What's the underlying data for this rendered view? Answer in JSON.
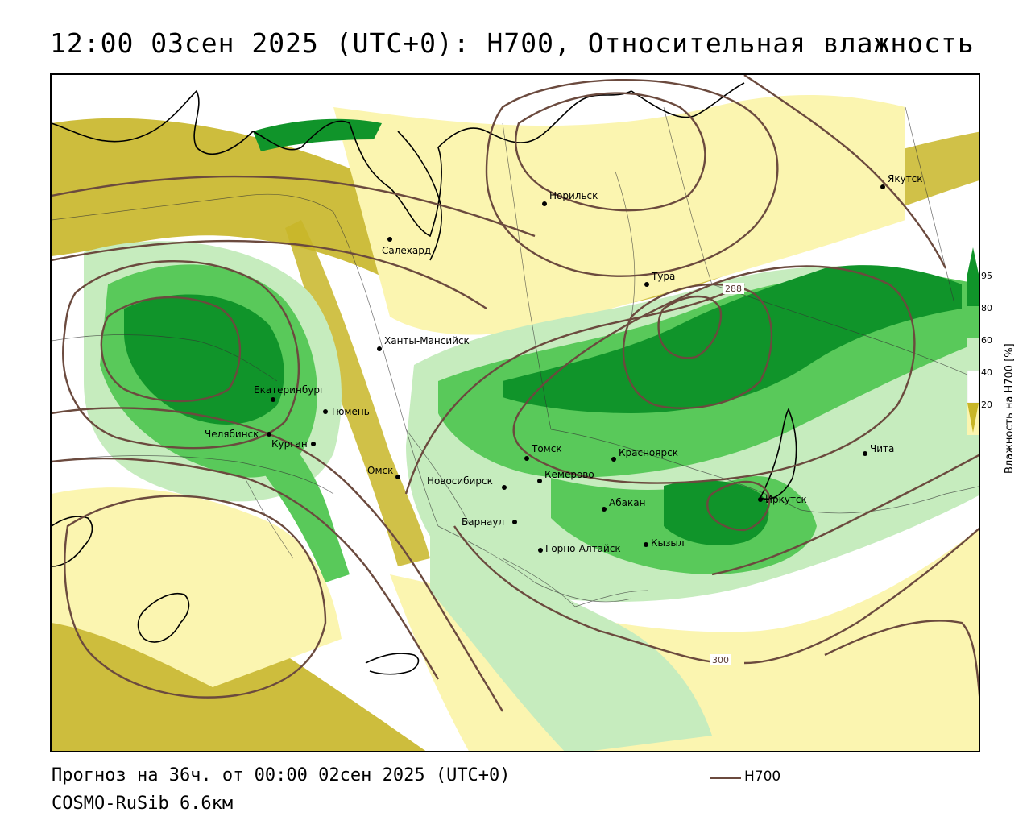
{
  "header": {
    "title": "12:00 03сен 2025 (UTC+0): H700, Относительная влажность"
  },
  "footer": {
    "forecast": "Прогноз на 36ч. от 00:00 02сен 2025 (UTC+0)",
    "model": "COSMO-RuSib 6.6км",
    "key_label": "H700"
  },
  "legend": {
    "title": "Влажность на H700 [%]",
    "ticks": [
      "95",
      "80",
      "60",
      "40",
      "20"
    ],
    "colors": {
      "very_dry": "#c8b628",
      "dry": "#fbf5b0",
      "neutral": "#ffffff",
      "moist": "#c6ecbe",
      "wet": "#59c95a",
      "saturated": "#10942a"
    },
    "contour_color": "#6b4a3e"
  },
  "map": {
    "contour_labels": [
      "288",
      "300"
    ],
    "cities": [
      {
        "name": "Норильск"
      },
      {
        "name": "Якутск"
      },
      {
        "name": "Салехард"
      },
      {
        "name": "Тура"
      },
      {
        "name": "Ханты-Мансийск"
      },
      {
        "name": "Екатеринбург"
      },
      {
        "name": "Тюмень"
      },
      {
        "name": "Челябинск"
      },
      {
        "name": "Курган"
      },
      {
        "name": "Омск"
      },
      {
        "name": "Томск"
      },
      {
        "name": "Красноярск"
      },
      {
        "name": "Новосибирск"
      },
      {
        "name": "Кемерово"
      },
      {
        "name": "Абакан"
      },
      {
        "name": "Иркутск"
      },
      {
        "name": "Барнаул"
      },
      {
        "name": "Горно-Алтайск"
      },
      {
        "name": "Кызыл"
      },
      {
        "name": "Чита"
      }
    ]
  }
}
